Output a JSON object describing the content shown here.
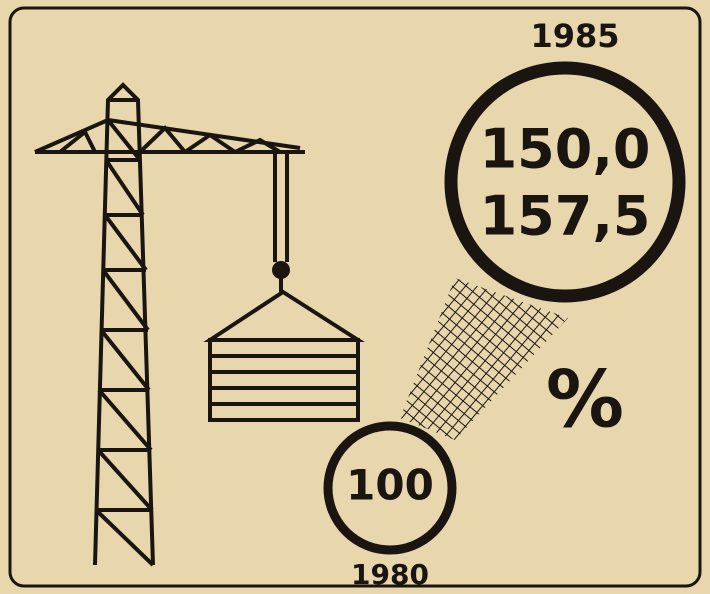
{
  "top_label": "1985",
  "top_values": [
    "150,0",
    "157,5"
  ],
  "bottom_value": "100",
  "bottom_label": "1980",
  "unit": "%"
}
